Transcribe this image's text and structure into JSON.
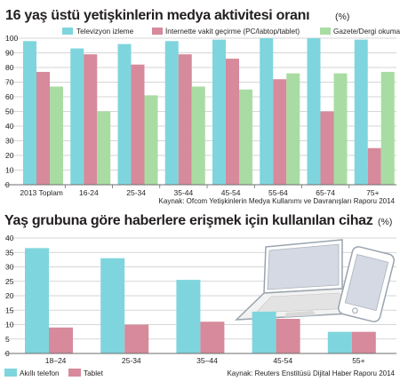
{
  "colors": {
    "tv": "#7fd5dd",
    "internet": "#d68a9b",
    "print": "#a9dca3",
    "phone": "#7fd5dd",
    "tablet": "#d68a9b",
    "grid": "#c9c9c9",
    "axis": "#6d6d6d"
  },
  "chart_data": [
    {
      "type": "bar",
      "title": "16 yaş üstü yetişkinlerin medya aktivitesi oranı",
      "unit": "(%)",
      "categories": [
        "2013 Toplam",
        "16-24",
        "25-34",
        "35-44",
        "45-54",
        "55-64",
        "65-74",
        "75+"
      ],
      "series": [
        {
          "name": "Televizyon izleme",
          "values": [
            98,
            93,
            96,
            98,
            99,
            100,
            100,
            99
          ]
        },
        {
          "name": "İnternette vakit geçirme (PC/labtop/tablet)",
          "values": [
            77,
            89,
            82,
            89,
            86,
            72,
            50,
            25
          ]
        },
        {
          "name": "Gazete/Dergi okuma",
          "values": [
            67,
            50,
            61,
            67,
            65,
            76,
            76,
            77
          ]
        }
      ],
      "ylim": [
        0,
        100
      ],
      "yticks": [
        0,
        10,
        20,
        30,
        40,
        50,
        60,
        70,
        80,
        90,
        100
      ],
      "grid": true,
      "legend": "top",
      "source": "Kaynak: Ofcom Yetişkinlerin Medya Kullanımı ve Davranışları Raporu 2014"
    },
    {
      "type": "bar",
      "title": "Yaş grubuna göre haberlere erişmek için kullanılan cihaz",
      "unit": "(%)",
      "categories": [
        "18–24",
        "25-34",
        "35–44",
        "45-54",
        "55+"
      ],
      "series": [
        {
          "name": "Akıllı telefon",
          "values": [
            36.5,
            33,
            25.5,
            14.5,
            7.5
          ]
        },
        {
          "name": "Tablet",
          "values": [
            9,
            10,
            11,
            12,
            7.5
          ]
        }
      ],
      "ylim": [
        0,
        40
      ],
      "yticks": [
        0,
        5,
        10,
        15,
        20,
        25,
        30,
        35,
        40
      ],
      "grid": true,
      "legend": "bottom-left",
      "source": "Kaynak: Reuters Enstitüsü Dijital Haber Raporu 2014"
    }
  ]
}
